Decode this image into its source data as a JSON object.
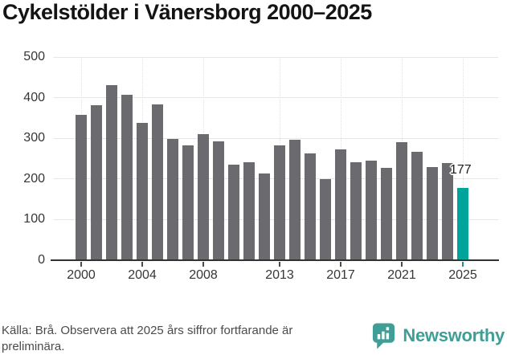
{
  "title": "Cykelstölder i Vänersborg 2000–2025",
  "chart_data": {
    "type": "bar",
    "categories": [
      2000,
      2001,
      2002,
      2003,
      2004,
      2005,
      2006,
      2007,
      2008,
      2009,
      2010,
      2011,
      2012,
      2013,
      2014,
      2015,
      2016,
      2017,
      2018,
      2019,
      2020,
      2021,
      2022,
      2023,
      2024,
      2025
    ],
    "values": [
      357,
      382,
      431,
      407,
      338,
      384,
      299,
      283,
      311,
      293,
      235,
      242,
      214,
      283,
      296,
      263,
      200,
      273,
      242,
      245,
      227,
      290,
      267,
      229,
      240,
      177
    ],
    "title": "Cykelstölder i Vänersborg 2000–2025",
    "xlabel": "",
    "ylabel": "",
    "ylim": [
      0,
      500
    ],
    "yticks": [
      0,
      100,
      200,
      300,
      400,
      500
    ],
    "xtick_years": [
      2000,
      2004,
      2008,
      2013,
      2017,
      2021,
      2025
    ],
    "grid": "horizontal",
    "legend": "none",
    "bar_color": "#6a6a6f",
    "highlight_category": 2025,
    "highlight_color": "#00a49a",
    "highlight_value_label": "177"
  },
  "footer": {
    "source_text": "Källa: Brå. Observera att 2025 års siffror fortfarande är preliminära.",
    "brand_name": "Newsworthy",
    "brand_color": "#3f9e96",
    "brand_icon": "bar-chart-speech-bubble-icon"
  }
}
